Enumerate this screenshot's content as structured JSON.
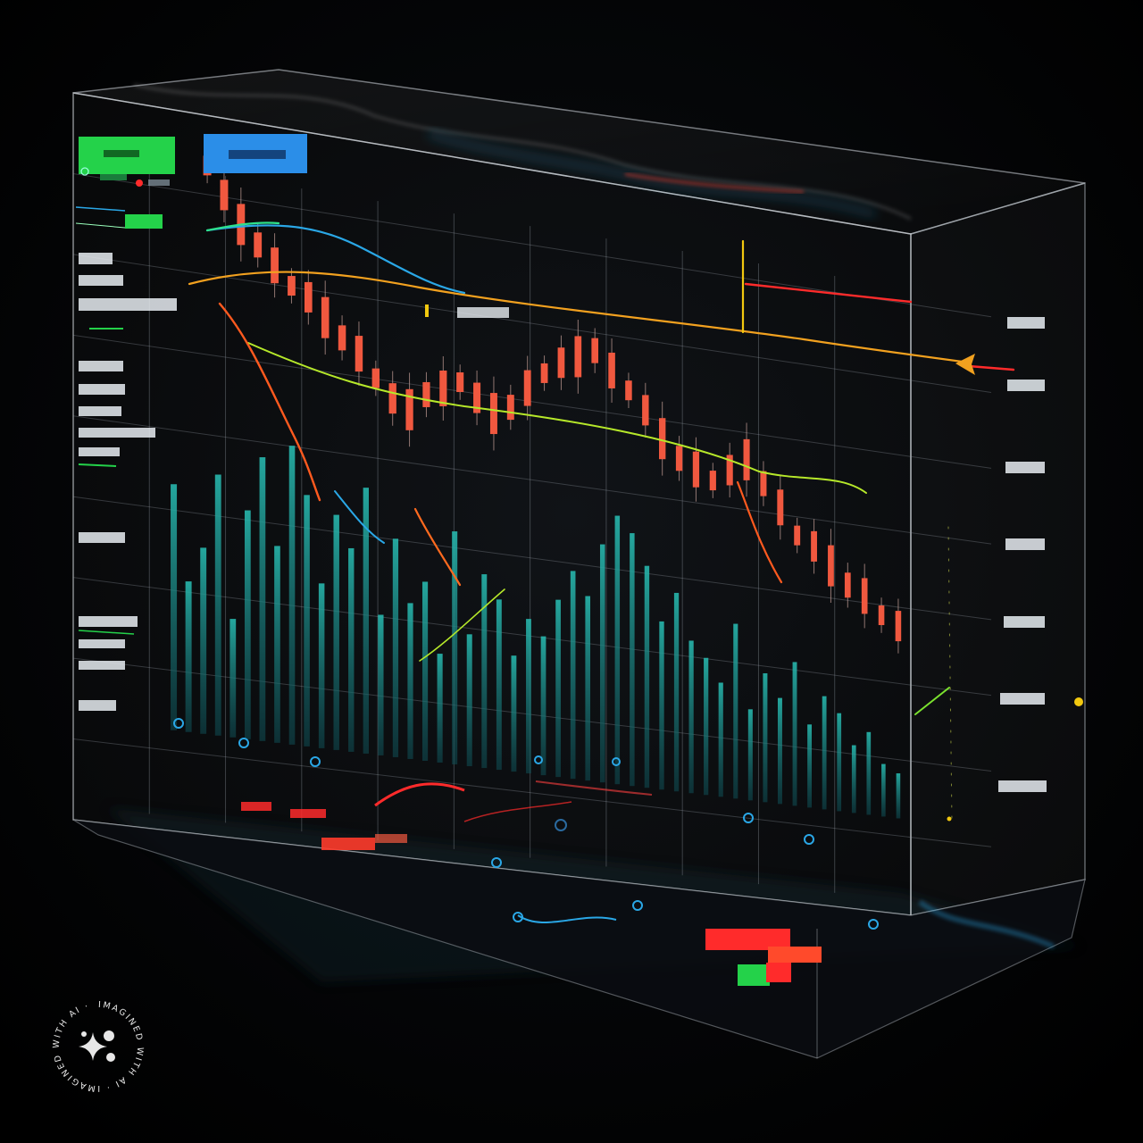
{
  "badge": {
    "text": "IMAGINED WITH AI · IMAGINED WITH AI ·"
  },
  "colors": {
    "background": "#000000",
    "grid": "#9aa3ad",
    "volume": "#1fa39b",
    "candle": "#f0583f",
    "line_blue": "#2aa7e6",
    "line_orange": "#f2a11f",
    "line_lime": "#b6e82a",
    "line_red": "#ff2b2b",
    "tag_green": "#24d24a",
    "tag_blue": "#2b8ee8",
    "accent_yellow": "#f2c80f"
  },
  "icons": {
    "badge": "sparkle-icon",
    "arrow": "arrow-left-icon"
  },
  "chart_data": {
    "type": "bar",
    "volume_series": [
      0.62,
      0.38,
      0.47,
      0.66,
      0.3,
      0.58,
      0.72,
      0.5,
      0.76,
      0.64,
      0.42,
      0.6,
      0.52,
      0.68,
      0.36,
      0.56,
      0.4,
      0.46,
      0.28,
      0.6,
      0.34,
      0.5,
      0.44,
      0.3,
      0.4,
      0.36,
      0.46,
      0.54,
      0.48,
      0.62,
      0.7,
      0.66,
      0.58,
      0.44,
      0.52,
      0.4,
      0.36,
      0.3,
      0.46,
      0.24,
      0.34,
      0.28,
      0.38,
      0.22,
      0.3,
      0.26,
      0.18,
      0.22,
      0.14,
      0.12
    ],
    "candle_series": [
      0.92,
      0.86,
      0.8,
      0.76,
      0.72,
      0.68,
      0.66,
      0.62,
      0.58,
      0.55,
      0.5,
      0.46,
      0.44,
      0.48,
      0.5,
      0.52,
      0.49,
      0.46,
      0.48,
      0.53,
      0.57,
      0.6,
      0.62,
      0.64,
      0.6,
      0.56,
      0.52,
      0.46,
      0.42,
      0.4,
      0.38,
      0.41,
      0.44,
      0.39,
      0.34,
      0.28,
      0.26,
      0.22,
      0.18,
      0.16,
      0.12,
      0.1
    ]
  }
}
